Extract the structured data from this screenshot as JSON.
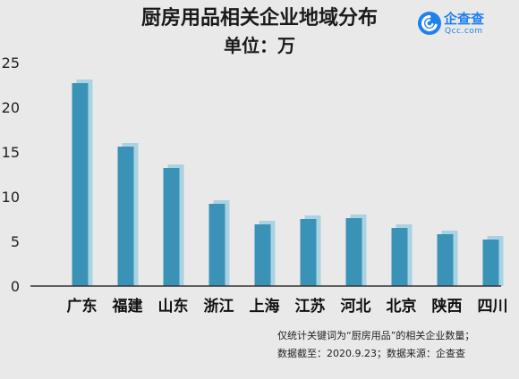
{
  "chart_data": {
    "type": "bar",
    "title": "厨房用品相关企业地域分布",
    "subtitle": "单位：万",
    "categories": [
      "广东",
      "福建",
      "山东",
      "浙江",
      "上海",
      "江苏",
      "河北",
      "北京",
      "陕西",
      "四川"
    ],
    "values": [
      22.7,
      15.6,
      13.2,
      9.2,
      6.9,
      7.5,
      7.6,
      6.5,
      5.8,
      5.2
    ],
    "ylim": [
      0,
      25
    ],
    "yticks": [
      0,
      5,
      10,
      15,
      20,
      25
    ],
    "xlabel": "",
    "ylabel": "",
    "grid": false,
    "bar_color": "#3a93b7",
    "shadow_color": "#a9d3e3",
    "axis_color": "#333333",
    "background": "#e9e9e9"
  },
  "brand": {
    "name": "企查查",
    "domain": "Qcc.com",
    "color": "#1f80f0",
    "icon": "qcc-logo-icon"
  },
  "notes": {
    "line1": "仅统计关键词为“厨房用品”的相关企业数量；",
    "line2": "数据截至：2020.9.23；数据来源：企查查"
  }
}
